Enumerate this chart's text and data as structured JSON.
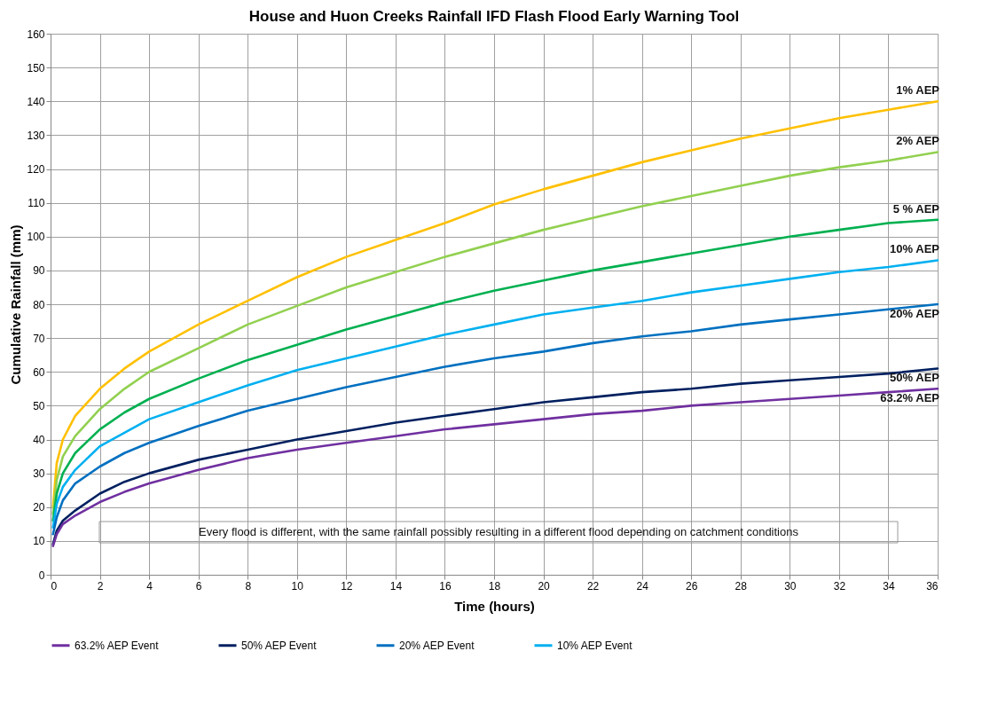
{
  "chart_data": {
    "type": "line",
    "title": "House and Huon Creeks Rainfall IFD Flash Flood Early Warning Tool",
    "xlabel": "Time (hours)",
    "ylabel": "Cumulative Rainfall (mm)",
    "x": [
      0.1,
      0.25,
      0.5,
      1,
      2,
      3,
      4,
      6,
      8,
      10,
      12,
      14,
      16,
      18,
      20,
      22,
      24,
      26,
      28,
      30,
      32,
      34,
      36
    ],
    "series": [
      {
        "color": "#ffc000",
        "values": [
          20,
          33,
          40,
          47,
          55,
          61,
          66,
          74,
          81,
          88,
          94,
          99,
          104,
          109.5,
          114,
          118,
          122,
          125.5,
          129,
          132,
          135,
          137.5,
          140
        ]
      },
      {
        "color": "#92d050",
        "values": [
          18,
          28,
          35,
          41,
          49,
          55,
          60,
          67,
          74,
          79.5,
          85,
          89.5,
          94,
          98,
          102,
          105.5,
          109,
          112,
          115,
          118,
          120.5,
          122.5,
          125
        ]
      },
      {
        "color": "#00b050",
        "values": [
          16,
          24,
          30,
          36,
          43,
          48,
          52,
          58,
          63.5,
          68,
          72.5,
          76.5,
          80.5,
          84,
          87,
          90,
          92.5,
          95,
          97.5,
          100,
          102,
          104,
          105
        ]
      },
      {
        "name": "10% AEP Event",
        "color": "#00b0f0",
        "values": [
          14,
          21,
          26,
          31,
          38,
          42,
          46,
          51,
          56,
          60.5,
          64,
          67.5,
          71,
          74,
          77,
          79,
          81,
          83.5,
          85.5,
          87.5,
          89.5,
          91,
          93
        ]
      },
      {
        "name": "20% AEP Event",
        "color": "#0070c0",
        "values": [
          12,
          17,
          22,
          27,
          32,
          36,
          39,
          44,
          48.5,
          52,
          55.5,
          58.5,
          61.5,
          64,
          66,
          68.5,
          70.5,
          72,
          74,
          75.5,
          77,
          78.5,
          80
        ]
      },
      {
        "name": "50% AEP Event",
        "color": "#002060",
        "values": [
          9,
          13,
          16,
          19,
          24,
          27.5,
          30,
          34,
          37,
          40,
          42.5,
          45,
          47,
          49,
          51,
          52.5,
          54,
          55,
          56.5,
          57.5,
          58.5,
          59.5,
          61
        ]
      },
      {
        "name": "63.2% AEP Event",
        "color": "#7030a0",
        "values": [
          8.5,
          12,
          15,
          17.5,
          21.5,
          24.5,
          27,
          31,
          34.5,
          37,
          39,
          41,
          43,
          44.5,
          46,
          47.5,
          48.5,
          50,
          51,
          52,
          53,
          54,
          55
        ]
      }
    ],
    "annotations": [
      "1% AEP",
      "2% AEP",
      "5 % AEP",
      "10% AEP",
      "20% AEP",
      "50% AEP",
      "63.2% AEP",
      "Every flood is different, with the same rainfall possibly resulting in a different flood depending on catchment conditions"
    ],
    "xlim": [
      0,
      36
    ],
    "xticks": [
      0,
      2,
      4,
      6,
      8,
      10,
      12,
      14,
      16,
      18,
      20,
      22,
      24,
      26,
      28,
      30,
      32,
      34,
      36
    ],
    "ylim": [
      0,
      160
    ],
    "yticks": [
      0,
      10,
      20,
      30,
      40,
      50,
      60,
      70,
      80,
      90,
      100,
      110,
      120,
      130,
      140,
      150,
      160
    ],
    "grid": true,
    "legend": "bottom",
    "marker": "none",
    "line_style": "solid"
  }
}
